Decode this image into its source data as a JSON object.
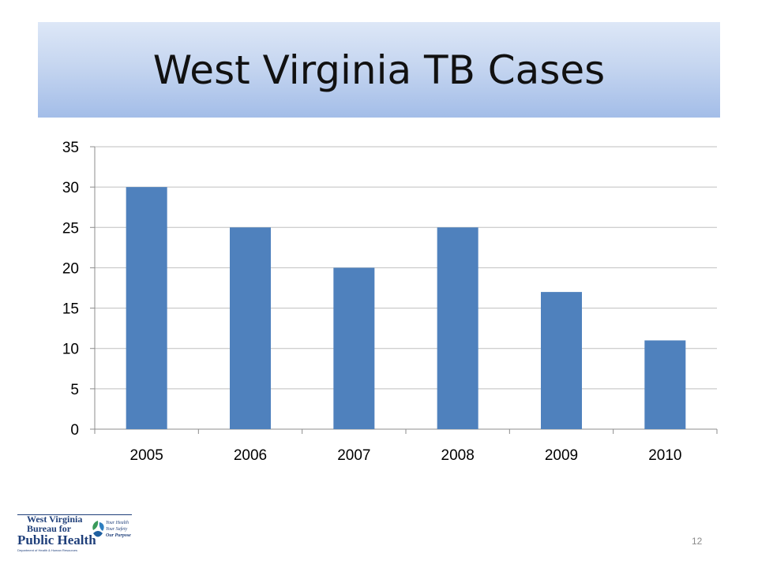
{
  "slide": {
    "title": "West Virginia TB Cases",
    "page_number": "12"
  },
  "logo": {
    "line1": "West Virginia",
    "line2": "Bureau for",
    "line3": "Public Health",
    "line4": "Department of Health & Human Resources",
    "tagline": [
      "Your Health",
      "Your Safety",
      "Our Purpose"
    ],
    "icon": "leaf-people-icon"
  },
  "colors": {
    "bar": "#4f81bd",
    "title_gradient_top": "#dde7f7",
    "title_gradient_bottom": "#a3bde8",
    "grid": "#bfbfbf"
  },
  "chart_data": {
    "type": "bar",
    "title": "",
    "xlabel": "",
    "ylabel": "",
    "categories": [
      "2005",
      "2006",
      "2007",
      "2008",
      "2009",
      "2010"
    ],
    "values": [
      30,
      25,
      20,
      25,
      17,
      11
    ],
    "ylim": [
      0,
      35
    ],
    "yticks": [
      0,
      5,
      10,
      15,
      20,
      25,
      30,
      35
    ],
    "grid": true,
    "legend": "none"
  }
}
